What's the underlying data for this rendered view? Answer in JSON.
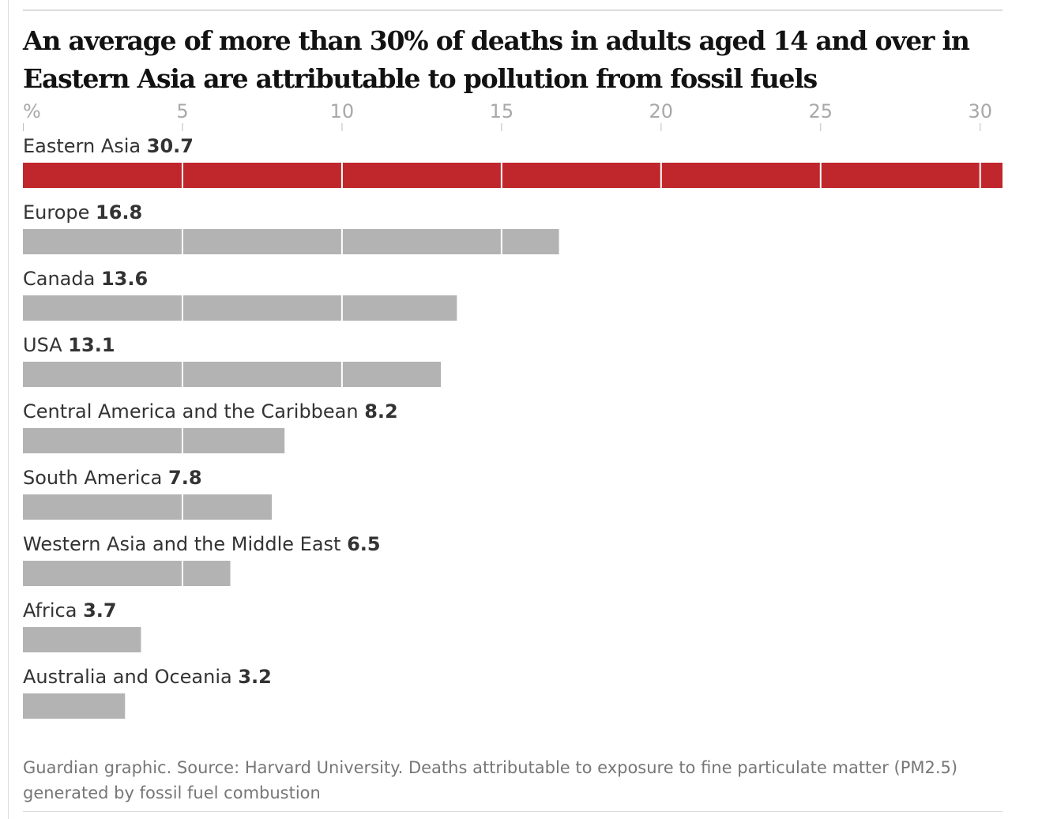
{
  "chart_data": {
    "type": "bar",
    "orientation": "horizontal",
    "title": "An average of more than 30% of deaths in adults aged 14 and over in Eastern Asia are attributable to pollution from fossil fuels",
    "unit_label": "%",
    "ticks": [
      5,
      10,
      15,
      20,
      25,
      30
    ],
    "xlim": [
      0,
      30.7
    ],
    "categories": [
      "Eastern Asia",
      "Europe",
      "Canada",
      "USA",
      "Central America and the Caribbean",
      "South America",
      "Western Asia and the Middle East",
      "Africa",
      "Australia and Oceania"
    ],
    "values": [
      30.7,
      16.8,
      13.6,
      13.1,
      8.2,
      7.8,
      6.5,
      3.7,
      3.2
    ],
    "value_labels": [
      "30.7",
      "16.8",
      "13.6",
      "13.1",
      "8.2",
      "7.8",
      "6.5",
      "3.7",
      "3.2"
    ],
    "highlight_category": "Eastern Asia",
    "colors": {
      "highlight": "#c0272d",
      "default": "#b3b3b3",
      "gridline": "#ffffff",
      "tick": "#bdbdbd"
    },
    "source": "Guardian graphic. Source: Harvard University. Deaths attributable to exposure to fine particulate matter (PM2.5) generated by fossil fuel combustion"
  }
}
